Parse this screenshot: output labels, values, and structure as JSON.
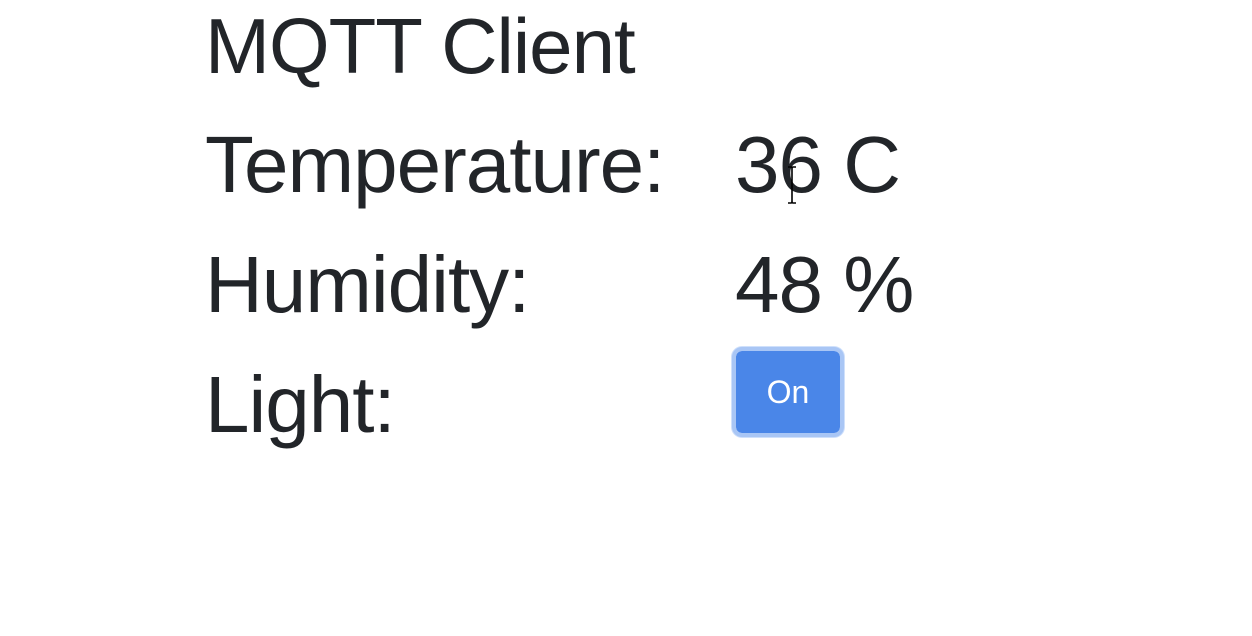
{
  "page": {
    "title": "MQTT Client"
  },
  "readings": {
    "temperature": {
      "label": "Temperature:",
      "value": "36 C"
    },
    "humidity": {
      "label": "Humidity:",
      "value": "48 %"
    },
    "light": {
      "label": "Light:",
      "button_label": "On"
    }
  },
  "colors": {
    "text": "#222529",
    "button_bg": "#4a86e8",
    "button_focus_ring": "#a9c6f5"
  },
  "icons": {
    "cursor": "text-cursor-icon"
  }
}
